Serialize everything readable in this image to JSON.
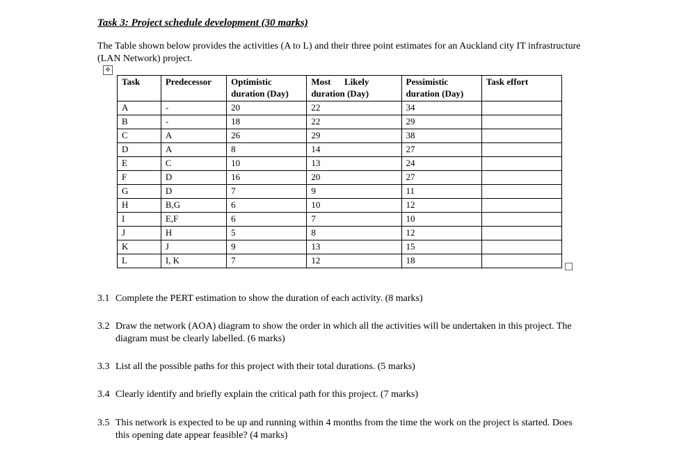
{
  "heading": "Task 3: Project schedule development (30 marks)",
  "intro": "The Table shown below provides the activities (A to L) and their three point estimates for an Auckland city IT infrastructure (LAN Network) project.",
  "table": {
    "headers": {
      "task": "Task",
      "pred": "Predecessor",
      "opt_l1": "Optimistic",
      "opt_l2": "duration (Day)",
      "ml_l1": "Most      Likely",
      "ml_l2": "duration (Day)",
      "pess_l1": "Pessimistic",
      "pess_l2": "duration (Day)",
      "eff": "Task effort"
    },
    "rows": [
      {
        "task": "A",
        "pred": "-",
        "opt": "20",
        "ml": "22",
        "pess": "34",
        "eff": ""
      },
      {
        "task": "B",
        "pred": "-",
        "opt": "18",
        "ml": "22",
        "pess": "29",
        "eff": ""
      },
      {
        "task": "C",
        "pred": "A",
        "opt": "26",
        "ml": "29",
        "pess": "38",
        "eff": ""
      },
      {
        "task": "D",
        "pred": "A",
        "opt": "8",
        "ml": "14",
        "pess": "27",
        "eff": ""
      },
      {
        "task": "E",
        "pred": "C",
        "opt": "10",
        "ml": "13",
        "pess": "24",
        "eff": ""
      },
      {
        "task": "F",
        "pred": "D",
        "opt": "16",
        "ml": "20",
        "pess": "27",
        "eff": ""
      },
      {
        "task": "G",
        "pred": "D",
        "opt": "7",
        "ml": "9",
        "pess": "11",
        "eff": ""
      },
      {
        "task": "H",
        "pred": "B,G",
        "opt": "6",
        "ml": "10",
        "pess": "12",
        "eff": ""
      },
      {
        "task": "I",
        "pred": "E,F",
        "opt": "6",
        "ml": "7",
        "pess": "10",
        "eff": ""
      },
      {
        "task": "J",
        "pred": "H",
        "opt": "5",
        "ml": "8",
        "pess": "12",
        "eff": ""
      },
      {
        "task": "K",
        "pred": "J",
        "opt": "9",
        "ml": "13",
        "pess": "15",
        "eff": ""
      },
      {
        "task": "L",
        "pred": "I, K",
        "opt": "7",
        "ml": "12",
        "pess": "18",
        "eff": ""
      }
    ]
  },
  "questions": [
    {
      "num": "3.1",
      "text": "Complete the PERT estimation to show the duration of each activity. (8 marks)"
    },
    {
      "num": "3.2",
      "text": "Draw the network (AOA) diagram to show the order in which all the activities will be undertaken in this project. The diagram must be clearly labelled. (6 marks)"
    },
    {
      "num": "3.3",
      "text": "List all the possible paths for this project with their total durations. (5 marks)"
    },
    {
      "num": "3.4",
      "text": "Clearly identify and briefly explain the critical path for this project. (7 marks)"
    },
    {
      "num": "3.5",
      "text": "This network is expected to be up and running within 4 months from the time the work on the project is started. Does this opening date appear feasible?  (4 marks)"
    }
  ]
}
